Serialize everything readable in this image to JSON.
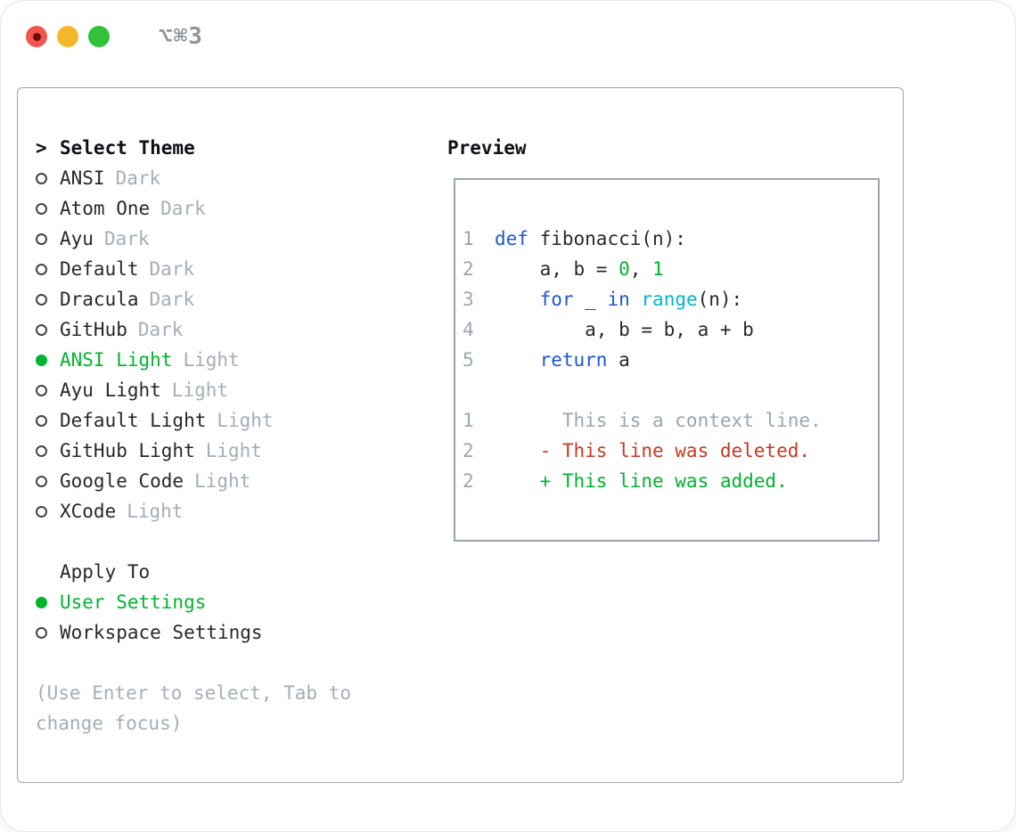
{
  "window": {
    "shortcut": "⌥⌘3"
  },
  "colors": {
    "text": "#24292f",
    "muted_gray": "#a4aeb9",
    "line_number_gray": "#9aa5b2",
    "accent_green": "#00b42e",
    "keyword_blue": "#1f57d6",
    "function_cyan": "#00b6cf",
    "deleted_red": "#c8391f",
    "panel_border": "#9aa3ae",
    "traffic_red": "#f2544e",
    "traffic_yellow": "#f6b72a",
    "traffic_green": "#32c13b"
  },
  "theme_panel": {
    "prompt": ">",
    "title": "Select Theme",
    "themes": [
      {
        "name": "ANSI",
        "tag": "Dark",
        "selected": false
      },
      {
        "name": "Atom One",
        "tag": "Dark",
        "selected": false
      },
      {
        "name": "Ayu",
        "tag": "Dark",
        "selected": false
      },
      {
        "name": "Default",
        "tag": "Dark",
        "selected": false
      },
      {
        "name": "Dracula",
        "tag": "Dark",
        "selected": false
      },
      {
        "name": "GitHub",
        "tag": "Dark",
        "selected": false
      },
      {
        "name": "ANSI Light",
        "tag": "Light",
        "selected": true
      },
      {
        "name": "Ayu Light",
        "tag": "Light",
        "selected": false
      },
      {
        "name": "Default Light",
        "tag": "Light",
        "selected": false
      },
      {
        "name": "GitHub Light",
        "tag": "Light",
        "selected": false
      },
      {
        "name": "Google Code",
        "tag": "Light",
        "selected": false
      },
      {
        "name": "XCode",
        "tag": "Light",
        "selected": false
      }
    ],
    "apply_to": {
      "title": "Apply To",
      "options": [
        {
          "name": "User Settings",
          "selected": true
        },
        {
          "name": "Workspace Settings",
          "selected": false
        }
      ]
    },
    "hint": "(Use Enter to select, Tab to change focus)"
  },
  "preview": {
    "title": "Preview",
    "code_lines": [
      {
        "num": "1",
        "segments": [
          {
            "t": "def",
            "c": "blue"
          },
          {
            "t": " fibonacci(n):",
            "c": "fg"
          }
        ]
      },
      {
        "num": "2",
        "segments": [
          {
            "t": "    a, b = ",
            "c": "fg"
          },
          {
            "t": "0",
            "c": "green"
          },
          {
            "t": ", ",
            "c": "fg"
          },
          {
            "t": "1",
            "c": "green"
          }
        ]
      },
      {
        "num": "3",
        "segments": [
          {
            "t": "    for",
            "c": "blue"
          },
          {
            "t": " _ ",
            "c": "fg"
          },
          {
            "t": "in",
            "c": "blue"
          },
          {
            "t": " ",
            "c": "fg"
          },
          {
            "t": "range",
            "c": "cyan"
          },
          {
            "t": "(n):",
            "c": "fg"
          }
        ]
      },
      {
        "num": "4",
        "segments": [
          {
            "t": "        a, b = b, a + b",
            "c": "fg"
          }
        ]
      },
      {
        "num": "5",
        "segments": [
          {
            "t": "    return",
            "c": "blue"
          },
          {
            "t": " a",
            "c": "fg"
          }
        ]
      },
      {
        "num": "",
        "segments": []
      },
      {
        "num": "1",
        "segments": [
          {
            "t": "      This is a context line.",
            "c": "gray"
          }
        ]
      },
      {
        "num": "2",
        "segments": [
          {
            "t": "    - This line was deleted.",
            "c": "red"
          }
        ]
      },
      {
        "num": "2",
        "segments": [
          {
            "t": "    + This line was added.",
            "c": "green"
          }
        ]
      }
    ]
  }
}
